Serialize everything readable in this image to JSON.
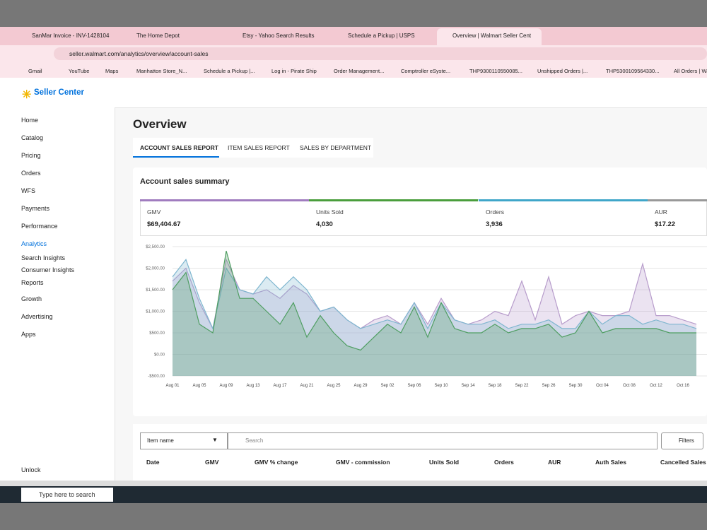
{
  "browser": {
    "tabs": [
      "SanMar Invoice - INV-1428104",
      "The Home Depot",
      "Etsy - Yahoo Search Results",
      "Schedule a Pickup | USPS",
      "Overview | Walmart Seller Cent"
    ],
    "url": "seller.walmart.com/analytics/overview/account-sales",
    "bookmarks": [
      "Gmail",
      "YouTube",
      "Maps",
      "Manhatton Store_N...",
      "Schedule a Pickup |...",
      "Log in - Pirate Ship",
      "Order Management...",
      "Comptroller eSyste...",
      "THP9300110550085...",
      "Unshipped Orders |...",
      "THP5300109564330...",
      "All Orders | Wa"
    ]
  },
  "app": {
    "brand": "Seller Center",
    "nav": [
      "Home",
      "Catalog",
      "Pricing",
      "Orders",
      "WFS",
      "Payments",
      "Performance",
      "Analytics"
    ],
    "subnav": [
      "Search Insights",
      "Consumer Insights",
      "Reports"
    ],
    "nav2": [
      "Growth",
      "Advertising",
      "Apps"
    ],
    "unlock": "Unlock"
  },
  "page": {
    "title": "Overview",
    "tabs": [
      "ACCOUNT SALES REPORT",
      "ITEM SALES REPORT",
      "SALES BY DEPARTMENT"
    ],
    "summary_title": "Account sales summary",
    "metrics": [
      {
        "label": "GMV",
        "value": "$69,404.67"
      },
      {
        "label": "Units Sold",
        "value": "4,030"
      },
      {
        "label": "Orders",
        "value": "3,936"
      },
      {
        "label": "AUR",
        "value": "$17.22"
      }
    ],
    "table": {
      "filter": "Item name",
      "search": "Search",
      "filters": "Filters",
      "columns": [
        "Date",
        "GMV",
        "GMV % change",
        "GMV - commission",
        "Units Sold",
        "Orders",
        "AUR",
        "Auth Sales",
        "Cancelled Sales"
      ]
    }
  },
  "taskbar": {
    "search": "Type here to search"
  },
  "chart_data": {
    "type": "area",
    "categories": [
      "Aug 01",
      null,
      "Aug 05",
      null,
      "Aug 09",
      null,
      "Aug 13",
      null,
      "Aug 17",
      null,
      "Aug 21",
      null,
      "Aug 25",
      null,
      "Aug 29",
      null,
      "Sep 02",
      null,
      "Sep 06",
      null,
      "Sep 10",
      null,
      "Sep 14",
      null,
      "Sep 18",
      null,
      "Sep 22",
      null,
      "Sep 26",
      null,
      "Sep 30",
      null,
      "Oct 04",
      null,
      "Oct 08",
      null,
      "Oct 12",
      null,
      "Oct 16",
      null
    ],
    "ylim": [
      -500,
      2500
    ],
    "yticks": [
      {
        "value": -500,
        "label": "-$500.00"
      },
      {
        "value": 0,
        "label": "$0.00"
      },
      {
        "value": 500,
        "label": "$500.00"
      },
      {
        "value": 1000,
        "label": "$1,000.00"
      },
      {
        "value": 1500,
        "label": "$1,500.00"
      },
      {
        "value": 2000,
        "label": "$2,000.00"
      },
      {
        "value": 2500,
        "label": "$2,500.00"
      }
    ],
    "grid": true,
    "series": [
      {
        "color": "#b79ccb",
        "values": [
          1700,
          2000,
          1200,
          600,
          2200,
          1500,
          1400,
          1500,
          1300,
          1600,
          1400,
          1000,
          1100,
          800,
          600,
          800,
          900,
          700,
          1200,
          700,
          1300,
          800,
          700,
          800,
          1000,
          900,
          1700,
          800,
          1800,
          700,
          900,
          1000,
          900,
          900,
          1000,
          2100,
          900,
          900,
          800,
          700
        ]
      },
      {
        "color": "#7fb6cf",
        "values": [
          1800,
          2200,
          1300,
          600,
          2000,
          1500,
          1400,
          1800,
          1500,
          1800,
          1500,
          1000,
          1100,
          800,
          600,
          700,
          800,
          700,
          1200,
          600,
          1200,
          800,
          700,
          700,
          800,
          600,
          700,
          700,
          800,
          600,
          600,
          1000,
          700,
          900,
          900,
          700,
          800,
          700,
          700,
          600
        ]
      },
      {
        "color": "#4f9e62",
        "values": [
          1500,
          1900,
          700,
          500,
          2400,
          1300,
          1300,
          1000,
          700,
          1200,
          400,
          900,
          500,
          200,
          100,
          400,
          700,
          500,
          1100,
          400,
          1200,
          600,
          500,
          500,
          700,
          500,
          600,
          600,
          700,
          400,
          500,
          1000,
          500,
          600,
          600,
          600,
          600,
          500,
          500,
          500
        ]
      }
    ]
  }
}
